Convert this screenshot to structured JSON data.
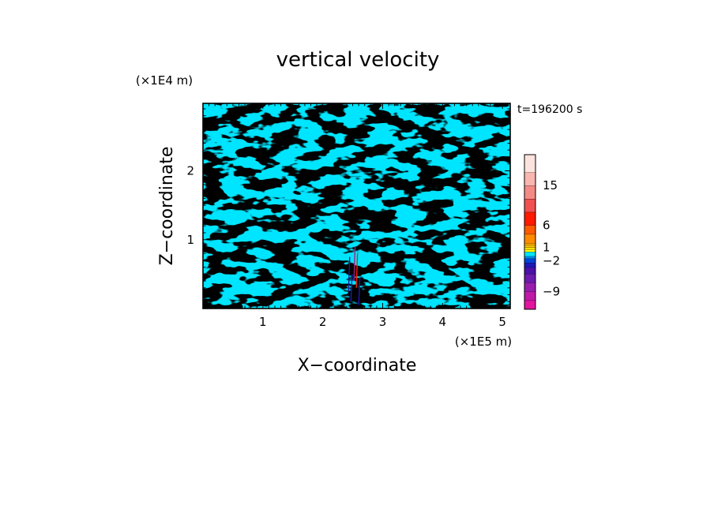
{
  "chart_data": {
    "type": "heatmap",
    "title": "vertical velocity",
    "xlabel": "X−coordinate",
    "ylabel": "Z−coordinate",
    "x_unit": "(×1E5 m)",
    "y_unit": "(×1E4 m)",
    "time_label": "t=196200 s",
    "xlim": [
      0,
      5.13
    ],
    "ylim": [
      0,
      2.98
    ],
    "x_ticks": [
      "1",
      "2",
      "3",
      "4",
      "5"
    ],
    "y_ticks": [
      "1",
      "2"
    ],
    "x_tick_values": [
      1,
      2,
      3,
      4,
      5
    ],
    "y_tick_values": [
      1,
      2
    ],
    "field_colors": {
      "positive": "#ffff00",
      "negative": "#00e5ff"
    },
    "colorbar": {
      "labels": [
        "15",
        "6",
        "1",
        "−2",
        "−9"
      ],
      "label_values": [
        15,
        6,
        1,
        -2,
        -9
      ],
      "range": [
        -13,
        22
      ],
      "levels": [
        {
          "lo": -13,
          "hi": -11,
          "color": "#e3159f"
        },
        {
          "lo": -11,
          "hi": -9,
          "color": "#c01aa8"
        },
        {
          "lo": -9,
          "hi": -7,
          "color": "#9a1eae"
        },
        {
          "lo": -7,
          "hi": -5,
          "color": "#6d1aae"
        },
        {
          "lo": -5,
          "hi": -3.5,
          "color": "#4a12a8"
        },
        {
          "lo": -3.5,
          "hi": -2.5,
          "color": "#2018b8"
        },
        {
          "lo": -2.5,
          "hi": -1.5,
          "color": "#0045d8"
        },
        {
          "lo": -1.5,
          "hi": -1,
          "color": "#0090f0"
        },
        {
          "lo": -1,
          "hi": 0,
          "color": "#00e5ff"
        },
        {
          "lo": 0,
          "hi": 0.5,
          "color": "#ffff00"
        },
        {
          "lo": 0.5,
          "hi": 1,
          "color": "#ffe000"
        },
        {
          "lo": 1,
          "hi": 1.5,
          "color": "#ffc400"
        },
        {
          "lo": 1.5,
          "hi": 2,
          "color": "#ffaa00"
        },
        {
          "lo": 2,
          "hi": 4,
          "color": "#ff8a00"
        },
        {
          "lo": 4,
          "hi": 6,
          "color": "#ff5a00"
        },
        {
          "lo": 6,
          "hi": 9,
          "color": "#ff1a00"
        },
        {
          "lo": 9,
          "hi": 12,
          "color": "#f05050"
        },
        {
          "lo": 12,
          "hi": 15,
          "color": "#f48a86"
        },
        {
          "lo": 15,
          "hi": 18,
          "color": "#f8b6b0"
        },
        {
          "lo": 18,
          "hi": 22,
          "color": "#fde3dd"
        }
      ]
    }
  }
}
